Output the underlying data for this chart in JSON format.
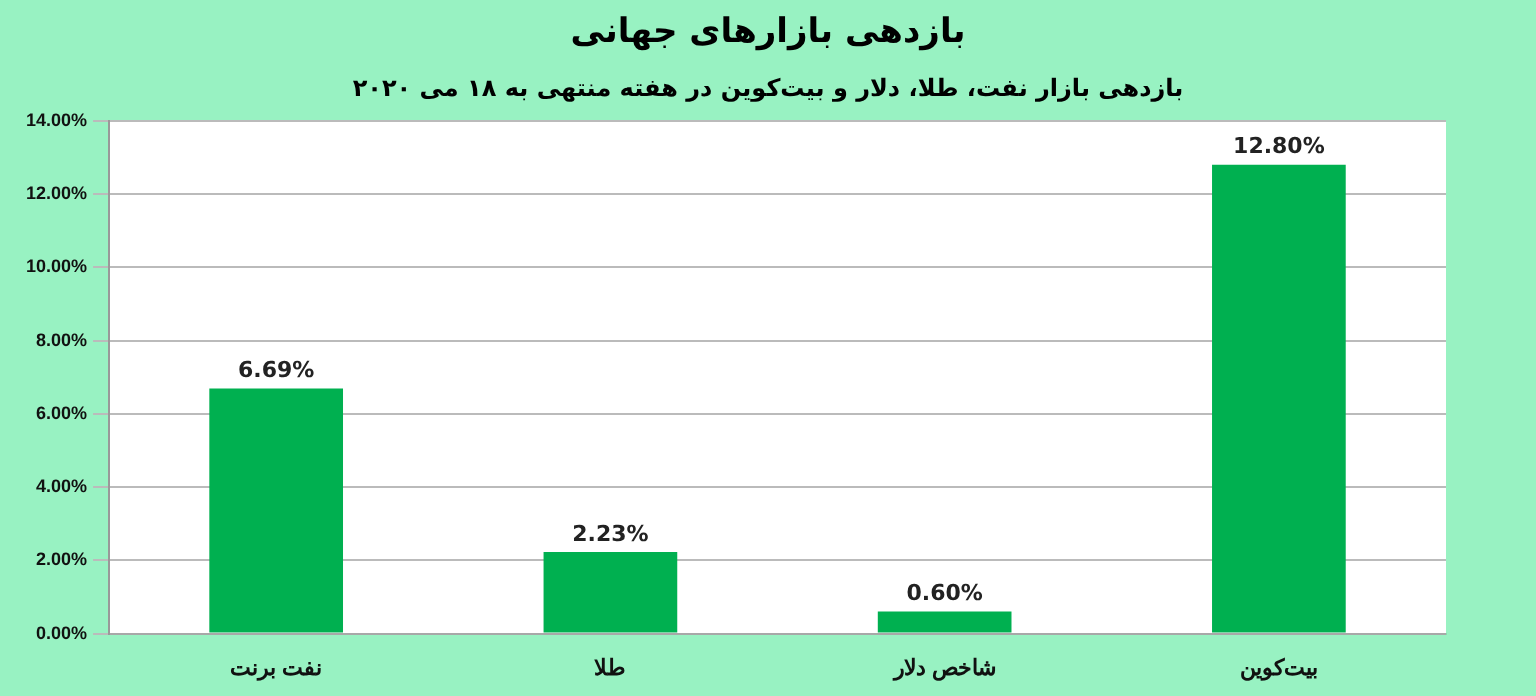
{
  "chart_data": {
    "type": "bar",
    "title": "بازدهی بازارهای جهانی",
    "subtitle": "بازدهی بازار نفت، طلا، دلار و بیت‌کوین در هفته منتهی به ۱۸ می ۲۰۲۰",
    "categories": [
      "نفت برنت",
      "طلا",
      "شاخص دلار",
      "بیت‌کوین"
    ],
    "values": [
      6.69,
      2.23,
      0.6,
      12.8
    ],
    "value_labels": [
      "6.69%",
      "2.23%",
      "0.60%",
      "12.80%"
    ],
    "color": "#00b050",
    "ylim": [
      0,
      14
    ],
    "yticks": [
      {
        "value": 0,
        "label": "0.00%"
      },
      {
        "value": 2,
        "label": "2.00%"
      },
      {
        "value": 4,
        "label": "4.00%"
      },
      {
        "value": 6,
        "label": "6.00%"
      },
      {
        "value": 8,
        "label": "8.00%"
      },
      {
        "value": 10,
        "label": "10.00%"
      },
      {
        "value": 12,
        "label": "12.00%"
      },
      {
        "value": 14,
        "label": "14.00%"
      }
    ],
    "grid": "y",
    "legend": false
  }
}
